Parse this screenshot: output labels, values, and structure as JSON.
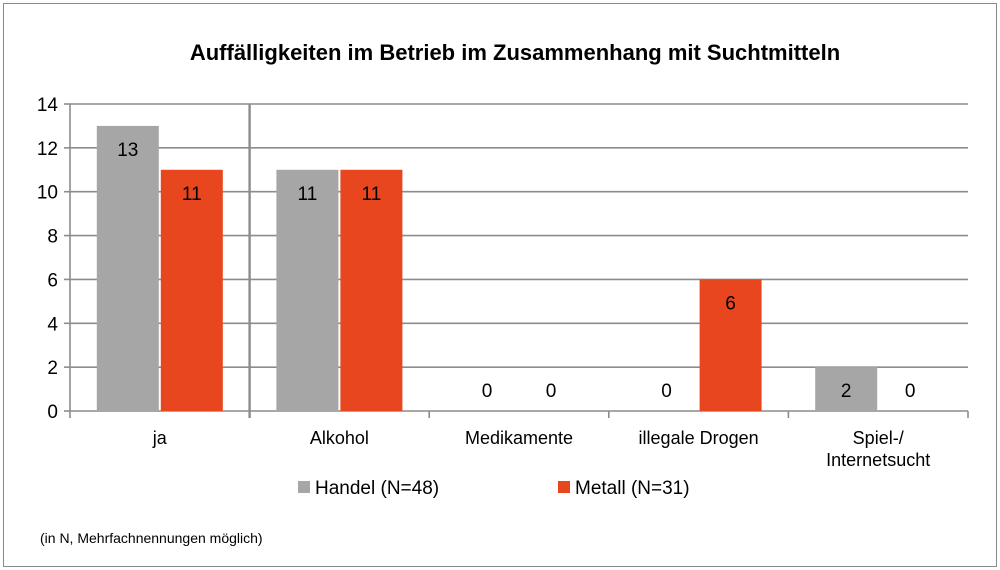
{
  "chart_data": {
    "type": "bar",
    "title": "Auffälligkeiten im Betrieb im Zusammenhang mit Suchtmitteln",
    "categories": [
      "ja",
      "Alkohol",
      "Medikamente",
      "illegale Drogen",
      "Spiel-/ Internetsucht"
    ],
    "category_lines": [
      [
        "ja"
      ],
      [
        "Alkohol"
      ],
      [
        "Medikamente"
      ],
      [
        "illegale Drogen"
      ],
      [
        "Spiel-/",
        "Internetsucht"
      ]
    ],
    "series": [
      {
        "name": "Handel (N=48)",
        "values": [
          13,
          11,
          0,
          0,
          2
        ],
        "color": "#a6a6a6"
      },
      {
        "name": "Metall (N=31)",
        "values": [
          11,
          11,
          0,
          6,
          0
        ],
        "color": "#e8461e"
      }
    ],
    "ylim": [
      0,
      14
    ],
    "yticks": [
      0,
      2,
      4,
      6,
      8,
      10,
      12,
      14
    ],
    "grid": true,
    "legend_position": "bottom",
    "note": "(in N, Mehrfachnennungen möglich)",
    "data_labels": true,
    "colors": {
      "gridline": "#8c8c8c",
      "axis": "#8c8c8c"
    }
  }
}
